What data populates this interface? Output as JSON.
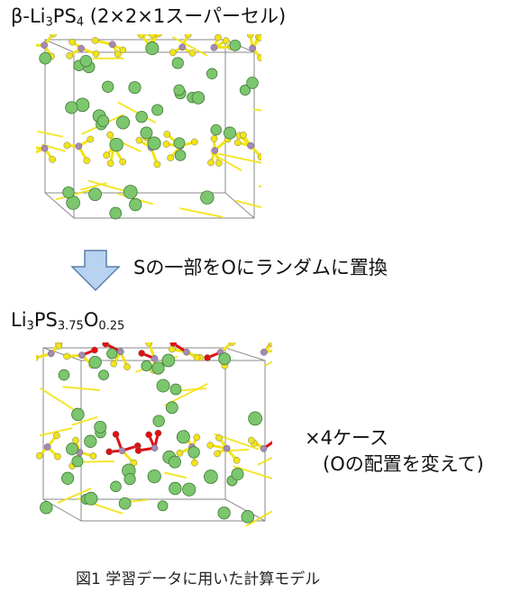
{
  "title_top": {
    "base": "β-Li",
    "sub1": "3",
    "mid": "PS",
    "sub2": "4",
    "rest": " (2×2×1スーパーセル)"
  },
  "arrow_text": "Sの一部をOにランダムに置換",
  "title_bottom": {
    "a": "Li",
    "sub1": "3",
    "b": "PS",
    "sub2": "3.75",
    "c": "O",
    "sub3": "0.25"
  },
  "cases": {
    "line1": "×4ケース",
    "line2": "(Oの配置を変えて)"
  },
  "caption": "図1 学習データに用いた計算モデル",
  "colors": {
    "li": "#7cc66e",
    "s": "#f2e416",
    "p": "#a58bb0",
    "o": "#e01010",
    "arrow": "#b7d3f0",
    "cell": "#8a8a8a"
  }
}
